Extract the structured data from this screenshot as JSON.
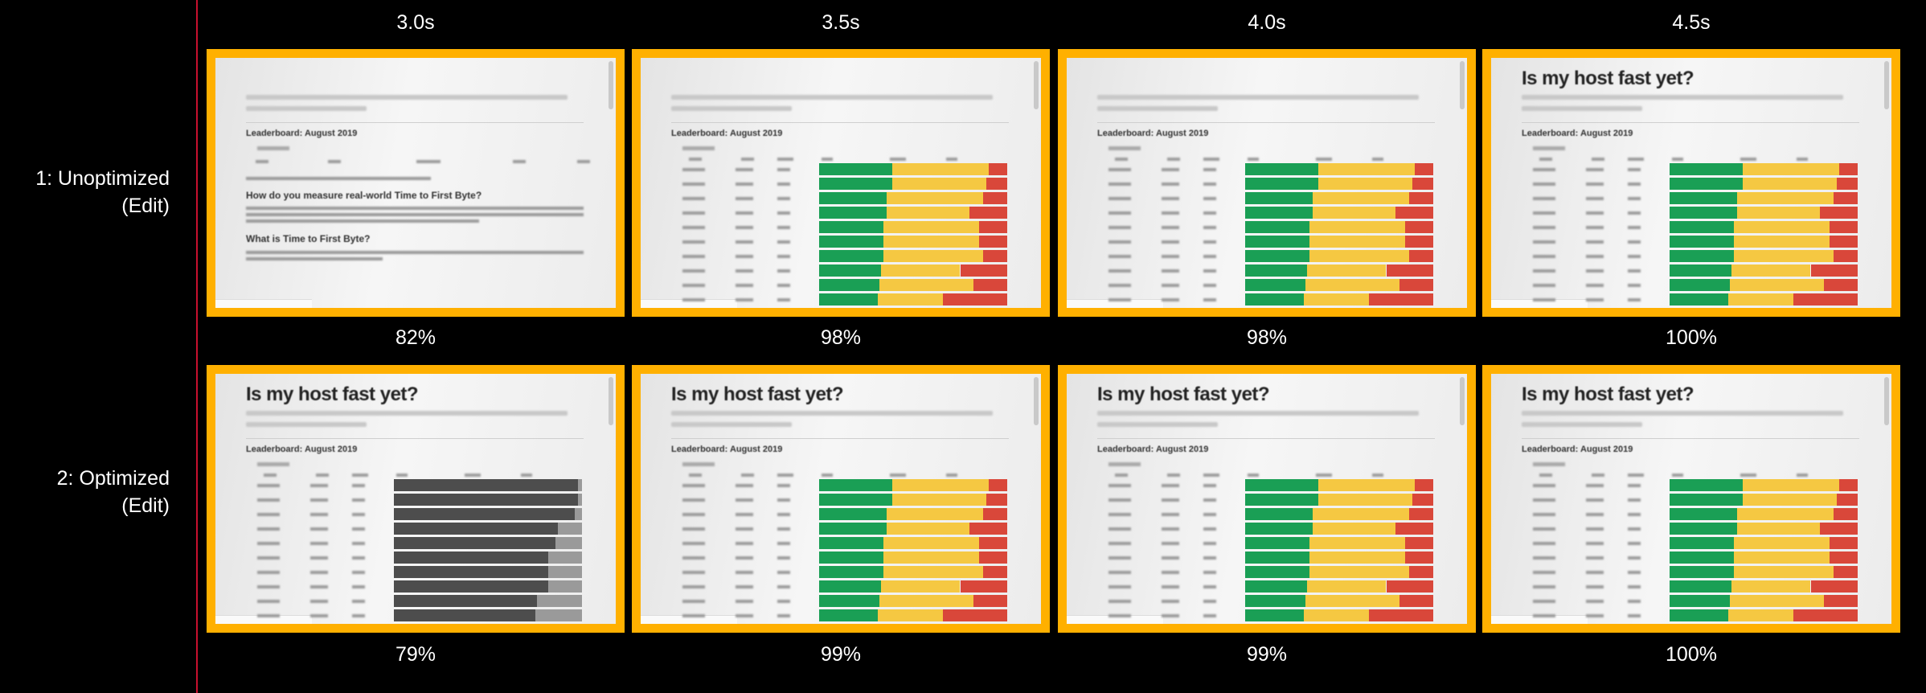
{
  "times": [
    "3.0s",
    "3.5s",
    "4.0s",
    "4.5s"
  ],
  "page": {
    "title": "Is my host fast yet?",
    "leaderboard": "Leaderboard: August 2019",
    "heading_measure": "How do you measure real-world Time to First Byte?",
    "heading_ttfb": "What is Time to First Byte?"
  },
  "colors": {
    "frame_border": "#ffb000",
    "fast": "#1a9f55",
    "average": "#f5c842",
    "slow": "#d9473a",
    "divider": "#c8102e"
  },
  "rows": [
    {
      "label_line1": "1: Unoptimized",
      "label_line2": "(Edit)",
      "frames": [
        {
          "state": "text",
          "show_title": false,
          "visual_complete": "82%"
        },
        {
          "state": "color",
          "show_title": false,
          "visual_complete": "98%"
        },
        {
          "state": "color",
          "show_title": false,
          "visual_complete": "98%"
        },
        {
          "state": "color",
          "show_title": true,
          "visual_complete": "100%"
        }
      ]
    },
    {
      "label_line1": "2: Optimized",
      "label_line2": "(Edit)",
      "frames": [
        {
          "state": "gray",
          "show_title": true,
          "visual_complete": "79%"
        },
        {
          "state": "color",
          "show_title": true,
          "visual_complete": "99%"
        },
        {
          "state": "color",
          "show_title": true,
          "visual_complete": "99%"
        },
        {
          "state": "color",
          "show_title": true,
          "visual_complete": "100%"
        }
      ]
    }
  ],
  "leaderboard_shares": {
    "fast": [
      0.39,
      0.39,
      0.36,
      0.36,
      0.34,
      0.34,
      0.34,
      0.33,
      0.32,
      0.31
    ],
    "slow_start": [
      0.9,
      0.89,
      0.87,
      0.8,
      0.85,
      0.85,
      0.87,
      0.75,
      0.82,
      0.66
    ],
    "gray_loaded": [
      0.98,
      0.98,
      0.96,
      0.87,
      0.86,
      0.82,
      0.82,
      0.82,
      0.76,
      0.75
    ]
  }
}
